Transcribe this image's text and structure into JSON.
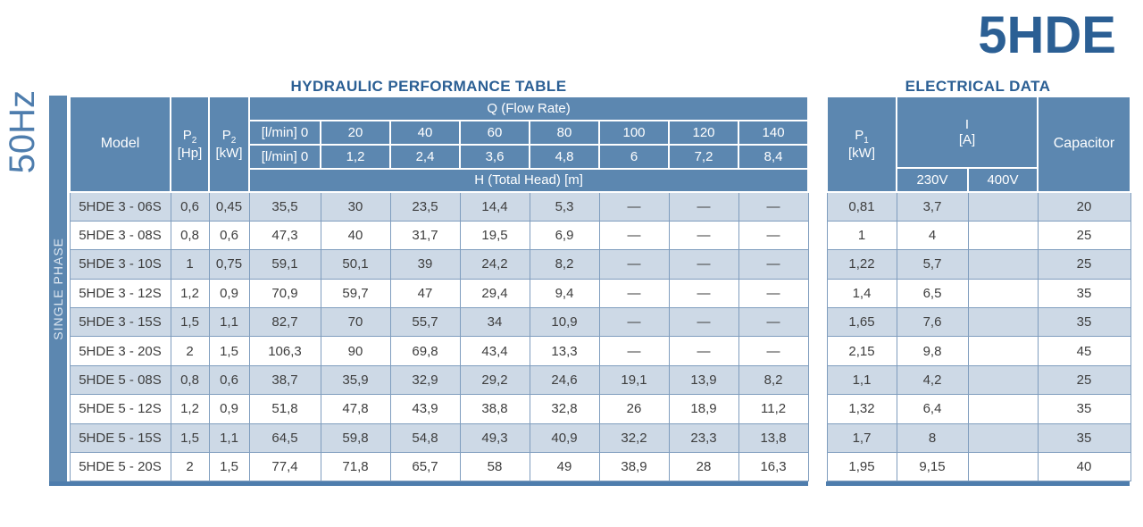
{
  "page": {
    "brand_title": "5HDE",
    "frequency_label": "50Hz",
    "phase_label": "SINGLE PHASE"
  },
  "hydraulic_table": {
    "title": "HYDRAULIC PERFORMANCE TABLE",
    "q_group_label": "Q (Flow Rate)",
    "h_group_label": "H (Total Head) [m]",
    "model_header": "Model",
    "p2_symbol": "P",
    "p2_subscript": "2",
    "p2_hp_unit": "[Hp]",
    "p2_kw_unit": "[kW]",
    "flow_row_1": {
      "label": "[l/min] 0",
      "values": [
        "20",
        "40",
        "60",
        "80",
        "100",
        "120",
        "140"
      ]
    },
    "flow_row_2": {
      "label": "[l/min] 0",
      "values": [
        "1,2",
        "2,4",
        "3,6",
        "4,8",
        "6",
        "7,2",
        "8,4"
      ]
    },
    "rows": [
      {
        "model": "5HDE 3 - 06S",
        "p2_hp": "0,6",
        "p2_kw": "0,45",
        "head": [
          "35,5",
          "30",
          "23,5",
          "14,4",
          "5,3",
          "—",
          "—",
          "—"
        ]
      },
      {
        "model": "5HDE 3 - 08S",
        "p2_hp": "0,8",
        "p2_kw": "0,6",
        "head": [
          "47,3",
          "40",
          "31,7",
          "19,5",
          "6,9",
          "—",
          "—",
          "—"
        ]
      },
      {
        "model": "5HDE 3 - 10S",
        "p2_hp": "1",
        "p2_kw": "0,75",
        "head": [
          "59,1",
          "50,1",
          "39",
          "24,2",
          "8,2",
          "—",
          "—",
          "—"
        ]
      },
      {
        "model": "5HDE 3 - 12S",
        "p2_hp": "1,2",
        "p2_kw": "0,9",
        "head": [
          "70,9",
          "59,7",
          "47",
          "29,4",
          "9,4",
          "—",
          "—",
          "—"
        ]
      },
      {
        "model": "5HDE 3 - 15S",
        "p2_hp": "1,5",
        "p2_kw": "1,1",
        "head": [
          "82,7",
          "70",
          "55,7",
          "34",
          "10,9",
          "—",
          "—",
          "—"
        ]
      },
      {
        "model": "5HDE 3 - 20S",
        "p2_hp": "2",
        "p2_kw": "1,5",
        "head": [
          "106,3",
          "90",
          "69,8",
          "43,4",
          "13,3",
          "—",
          "—",
          "—"
        ]
      },
      {
        "model": "5HDE 5 - 08S",
        "p2_hp": "0,8",
        "p2_kw": "0,6",
        "head": [
          "38,7",
          "35,9",
          "32,9",
          "29,2",
          "24,6",
          "19,1",
          "13,9",
          "8,2"
        ]
      },
      {
        "model": "5HDE 5 - 12S",
        "p2_hp": "1,2",
        "p2_kw": "0,9",
        "head": [
          "51,8",
          "47,8",
          "43,9",
          "38,8",
          "32,8",
          "26",
          "18,9",
          "11,2"
        ]
      },
      {
        "model": "5HDE 5 - 15S",
        "p2_hp": "1,5",
        "p2_kw": "1,1",
        "head": [
          "64,5",
          "59,8",
          "54,8",
          "49,3",
          "40,9",
          "32,2",
          "23,3",
          "13,8"
        ]
      },
      {
        "model": "5HDE 5 - 20S",
        "p2_hp": "2",
        "p2_kw": "1,5",
        "head": [
          "77,4",
          "71,8",
          "65,7",
          "58",
          "49",
          "38,9",
          "28",
          "16,3"
        ]
      }
    ]
  },
  "electrical_table": {
    "title": "ELECTRICAL DATA",
    "p1_symbol": "P",
    "p1_subscript": "1",
    "p1_unit": "[kW]",
    "current_symbol": "I",
    "current_unit": "[A]",
    "voltage_230": "230V",
    "voltage_400": "400V",
    "capacitor_header": "Capacitor",
    "rows": [
      {
        "p1": "0,81",
        "i_230": "3,7",
        "i_400": "",
        "capacitor": "20"
      },
      {
        "p1": "1",
        "i_230": "4",
        "i_400": "",
        "capacitor": "25"
      },
      {
        "p1": "1,22",
        "i_230": "5,7",
        "i_400": "",
        "capacitor": "25"
      },
      {
        "p1": "1,4",
        "i_230": "6,5",
        "i_400": "",
        "capacitor": "35"
      },
      {
        "p1": "1,65",
        "i_230": "7,6",
        "i_400": "",
        "capacitor": "35"
      },
      {
        "p1": "2,15",
        "i_230": "9,8",
        "i_400": "",
        "capacitor": "45"
      },
      {
        "p1": "1,1",
        "i_230": "4,2",
        "i_400": "",
        "capacitor": "25"
      },
      {
        "p1": "1,32",
        "i_230": "6,4",
        "i_400": "",
        "capacitor": "35"
      },
      {
        "p1": "1,7",
        "i_230": "8",
        "i_400": "",
        "capacitor": "35"
      },
      {
        "p1": "1,95",
        "i_230": "9,15",
        "i_400": "",
        "capacitor": "40"
      }
    ]
  },
  "colors": {
    "header_blue": "#5c87b0",
    "light_row": "#cdd9e6",
    "grid_line": "#7f9dbe",
    "accent_dark_blue": "#2b5f94",
    "frequency_blue": "#4e7dad",
    "bottom_bar_blue": "#4e7dad",
    "body_text": "#3e3e3e"
  }
}
